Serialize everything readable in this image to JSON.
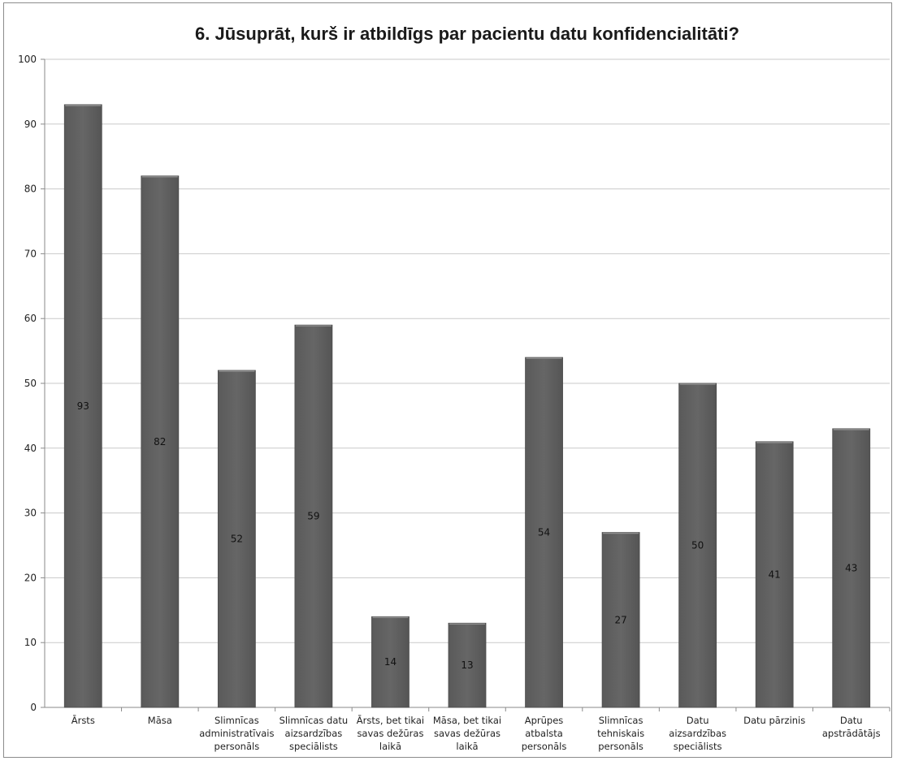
{
  "chart_data": {
    "type": "bar",
    "title": "6. Jūsuprāt, kurš ir atbildīgs par pacientu datu konfidencialitāti?",
    "xlabel": "",
    "ylabel": "",
    "ylim": [
      0,
      100
    ],
    "yticks": [
      0,
      10,
      20,
      30,
      40,
      50,
      60,
      70,
      80,
      90,
      100
    ],
    "grid": true,
    "legend": "none",
    "bar_color": "#626262",
    "categories": [
      [
        "Ārsts"
      ],
      [
        "Māsa"
      ],
      [
        "Slimnīcas",
        "administratīvais",
        "personāls"
      ],
      [
        "Slimnīcas datu",
        "aizsardzības",
        "speciālists"
      ],
      [
        "Ārsts, bet tikai",
        "savas dežūras",
        "laikā"
      ],
      [
        "Māsa, bet tikai",
        "savas dežūras",
        "laikā"
      ],
      [
        "Aprūpes",
        "atbalsta",
        "personāls"
      ],
      [
        "Slimnīcas",
        "tehniskais",
        "personāls"
      ],
      [
        "Datu",
        "aizsardzības",
        "speciālists"
      ],
      [
        "Datu pārzinis"
      ],
      [
        "Datu",
        "apstrādātājs"
      ]
    ],
    "values": [
      93,
      82,
      52,
      59,
      14,
      13,
      54,
      27,
      50,
      41,
      43
    ]
  }
}
